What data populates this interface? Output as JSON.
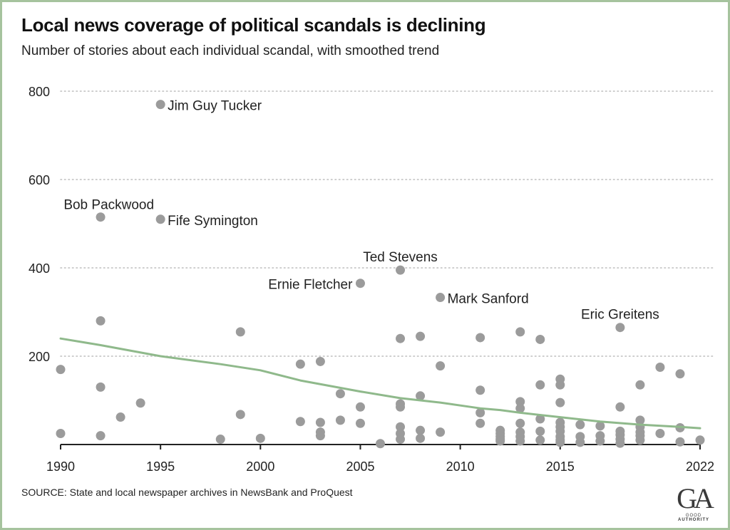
{
  "title": "Local news coverage of political scandals is declining",
  "subtitle": "Number of stories about each individual scandal, with smoothed trend",
  "source": "SOURCE: State and local newspaper archives in NewsBank and ProQuest",
  "logo": {
    "mark": "GA",
    "text_light": "GOOD",
    "text_bold": "AUTHORITY"
  },
  "colors": {
    "points": "#9b9b9b",
    "trend": "#8fb98b",
    "grid": "#bdbdbd",
    "border": "#a6c39e",
    "text": "#222222"
  },
  "chart_data": {
    "type": "scatter",
    "xlim": [
      1990,
      2022
    ],
    "ylim": [
      0,
      800
    ],
    "x_ticks": [
      1990,
      1995,
      2000,
      2005,
      2010,
      2015,
      2022
    ],
    "x_tick_labels": [
      "1990",
      "1995",
      "2000",
      "2005",
      "2010",
      "2015",
      "2022"
    ],
    "y_ticks": [
      200,
      400,
      600,
      800
    ],
    "y_tick_labels": [
      "200",
      "400",
      "600",
      "800"
    ],
    "grid": "horizontal dotted",
    "points": [
      [
        1990,
        170
      ],
      [
        1990,
        25
      ],
      [
        1992,
        515
      ],
      [
        1992,
        280
      ],
      [
        1992,
        130
      ],
      [
        1992,
        20
      ],
      [
        1993,
        62
      ],
      [
        1994,
        94
      ],
      [
        1995,
        770
      ],
      [
        1995,
        510
      ],
      [
        1998,
        12
      ],
      [
        1999,
        255
      ],
      [
        1999,
        68
      ],
      [
        2000,
        14
      ],
      [
        2002,
        182
      ],
      [
        2002,
        52
      ],
      [
        2003,
        188
      ],
      [
        2003,
        50
      ],
      [
        2003,
        28
      ],
      [
        2003,
        20
      ],
      [
        2004,
        115
      ],
      [
        2004,
        55
      ],
      [
        2005,
        365
      ],
      [
        2005,
        85
      ],
      [
        2005,
        48
      ],
      [
        2006,
        2
      ],
      [
        2007,
        395
      ],
      [
        2007,
        240
      ],
      [
        2007,
        92
      ],
      [
        2007,
        85
      ],
      [
        2007,
        40
      ],
      [
        2007,
        25
      ],
      [
        2007,
        12
      ],
      [
        2008,
        245
      ],
      [
        2008,
        110
      ],
      [
        2008,
        32
      ],
      [
        2008,
        14
      ],
      [
        2009,
        333
      ],
      [
        2009,
        178
      ],
      [
        2009,
        28
      ],
      [
        2011,
        242
      ],
      [
        2011,
        123
      ],
      [
        2011,
        72
      ],
      [
        2011,
        48
      ],
      [
        2012,
        32
      ],
      [
        2012,
        25
      ],
      [
        2012,
        18
      ],
      [
        2012,
        12
      ],
      [
        2012,
        8
      ],
      [
        2013,
        255
      ],
      [
        2013,
        97
      ],
      [
        2013,
        82
      ],
      [
        2013,
        48
      ],
      [
        2013,
        28
      ],
      [
        2013,
        18
      ],
      [
        2013,
        8
      ],
      [
        2014,
        238
      ],
      [
        2014,
        135
      ],
      [
        2014,
        58
      ],
      [
        2014,
        30
      ],
      [
        2014,
        10
      ],
      [
        2015,
        148
      ],
      [
        2015,
        135
      ],
      [
        2015,
        95
      ],
      [
        2015,
        50
      ],
      [
        2015,
        40
      ],
      [
        2015,
        30
      ],
      [
        2015,
        18
      ],
      [
        2015,
        10
      ],
      [
        2015,
        5
      ],
      [
        2016,
        45
      ],
      [
        2016,
        18
      ],
      [
        2016,
        5
      ],
      [
        2017,
        42
      ],
      [
        2017,
        20
      ],
      [
        2017,
        8
      ],
      [
        2018,
        265
      ],
      [
        2018,
        85
      ],
      [
        2018,
        30
      ],
      [
        2018,
        22
      ],
      [
        2018,
        12
      ],
      [
        2018,
        3
      ],
      [
        2019,
        135
      ],
      [
        2019,
        55
      ],
      [
        2019,
        40
      ],
      [
        2019,
        28
      ],
      [
        2019,
        20
      ],
      [
        2019,
        10
      ],
      [
        2020,
        25
      ],
      [
        2020,
        175
      ],
      [
        2021,
        160
      ],
      [
        2021,
        38
      ],
      [
        2021,
        6
      ],
      [
        2022,
        10
      ]
    ],
    "annotations": [
      {
        "text": "Jim Guy Tucker",
        "x": 1995,
        "y": 770,
        "side": "right"
      },
      {
        "text": "Bob Packwood",
        "x": 1992,
        "y": 515,
        "side": "above-left"
      },
      {
        "text": "Fife Symington",
        "x": 1995,
        "y": 510,
        "side": "right"
      },
      {
        "text": "Ted Stevens",
        "x": 2007,
        "y": 395,
        "side": "above"
      },
      {
        "text": "Ernie Fletcher",
        "x": 2005,
        "y": 365,
        "side": "left"
      },
      {
        "text": "Mark Sanford",
        "x": 2009,
        "y": 333,
        "side": "right"
      },
      {
        "text": "Eric Greitens",
        "x": 2018,
        "y": 265,
        "side": "above"
      }
    ],
    "trend": {
      "x": [
        1990,
        1992,
        1995,
        1998,
        2000,
        2002,
        2005,
        2007,
        2009,
        2011,
        2012,
        2013,
        2015,
        2017,
        2019,
        2021,
        2022
      ],
      "y": [
        240,
        225,
        200,
        182,
        168,
        145,
        120,
        105,
        95,
        82,
        78,
        72,
        62,
        52,
        45,
        40,
        37
      ]
    }
  }
}
